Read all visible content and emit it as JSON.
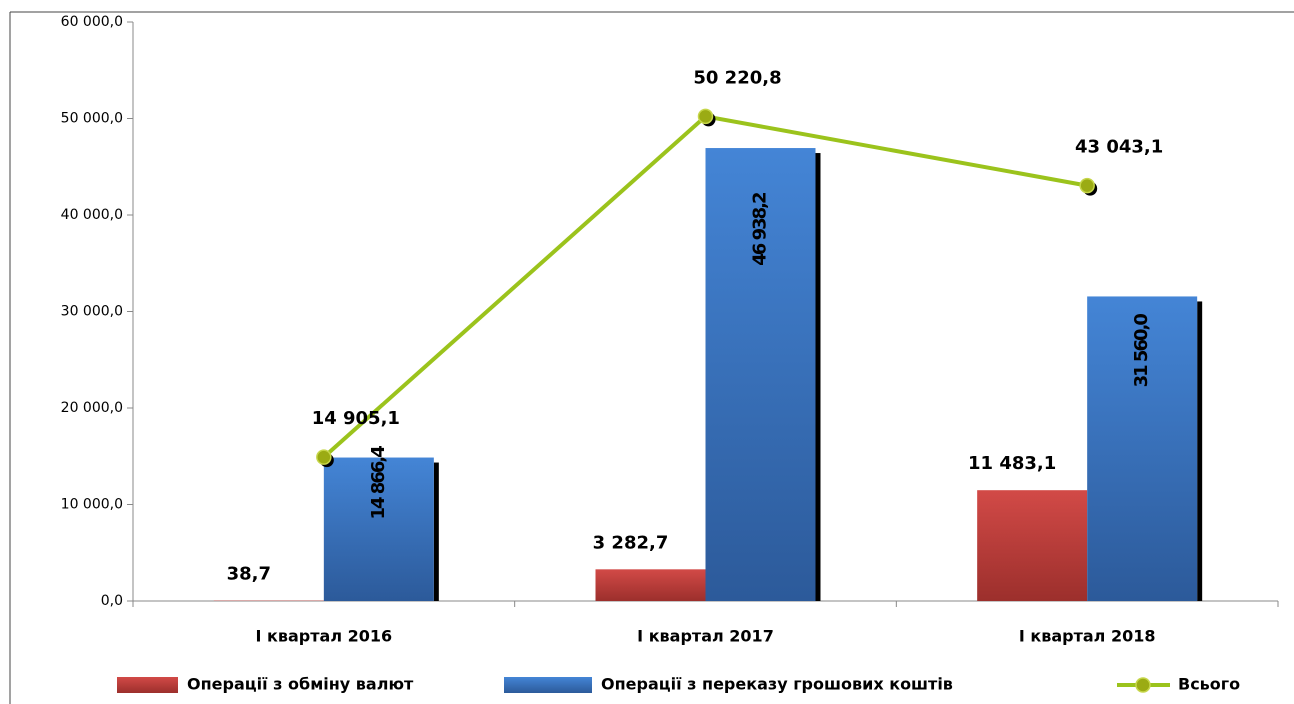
{
  "chart_data": {
    "type": "bar",
    "categories": [
      "І квартал 2016",
      "І квартал 2017",
      "І квартал 2018"
    ],
    "series": [
      {
        "name": "Операції з обміну валют",
        "type": "bar",
        "color": "#c0504d",
        "values": [
          38.7,
          3282.7,
          11483.1
        ],
        "value_labels": [
          "38,7",
          "3 282,7",
          "11 483,1"
        ]
      },
      {
        "name": "Операції з переказу грошових коштів",
        "type": "bar",
        "color": "#3f7fcc",
        "values": [
          14866.4,
          46938.2,
          31560.0
        ],
        "value_labels": [
          "14 866,4",
          "46 938,2",
          "31 560,0"
        ]
      },
      {
        "name": "Всього",
        "type": "line",
        "color": "#9bc31c",
        "values": [
          14905.1,
          50220.8,
          43043.1
        ],
        "value_labels": [
          "14 905,1",
          "50 220,8",
          "43 043,1"
        ]
      }
    ],
    "ylim": [
      0,
      60000
    ],
    "yticks": [
      {
        "value": 0,
        "label": "0,0"
      },
      {
        "value": 10000,
        "label": "10 000,0"
      },
      {
        "value": 20000,
        "label": "20 000,0"
      },
      {
        "value": 30000,
        "label": "30 000,0"
      },
      {
        "value": 40000,
        "label": "40 000,0"
      },
      {
        "value": 50000,
        "label": "50 000,0"
      },
      {
        "value": 60000,
        "label": "60 000,0"
      }
    ],
    "legend": "bottom"
  }
}
